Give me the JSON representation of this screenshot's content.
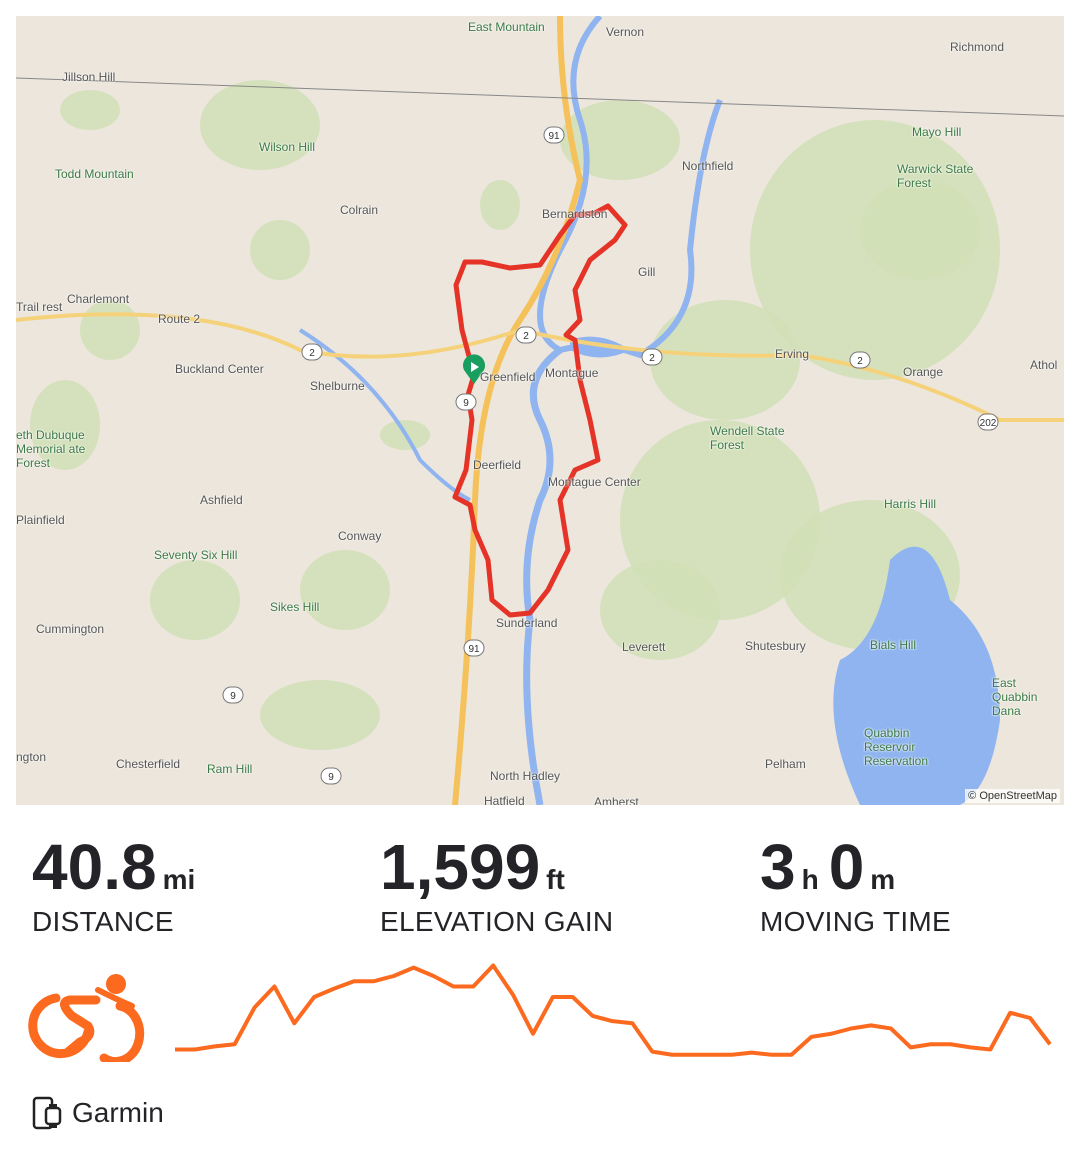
{
  "map": {
    "attribution": "© OpenStreetMap",
    "labels": [
      "East Mountain",
      "Vernon",
      "Richmond",
      "Jillson Hill",
      "Mayo Hill",
      "Wilson Hill",
      "Northfield",
      "Todd Mountain",
      "Warwick State Forest",
      "Colrain",
      "Bernardston",
      "Gill",
      "Charlemont",
      "Route 2",
      "Trail rest",
      "Buckland Center",
      "Greenfield",
      "Montague",
      "Erving",
      "Orange",
      "Athol",
      "Shelburne",
      "Wendell State Forest",
      "eth Dubuque Memorial ate Forest",
      "Deerfield",
      "Montague Center",
      "Harris Hill",
      "Ashfield",
      "Plainfield",
      "Conway",
      "Seventy Six Hill",
      "Sikes Hill",
      "Sunderland",
      "Leverett",
      "Shutesbury",
      "Bials Hill",
      "Cummington",
      "East Quabbin Dana",
      "Quabbin Reservoir Reservation",
      "ngton",
      "Chesterfield",
      "Ram Hill",
      "North Hadley",
      "Pelham",
      "Hatfield",
      "Amherst"
    ],
    "shields": [
      "91",
      "2",
      "2",
      "2",
      "9",
      "202",
      "91",
      "9",
      "9",
      "2"
    ],
    "route_color": "#e53327",
    "start_marker_color": "#1a9e5f"
  },
  "stats": [
    {
      "value": "40.8",
      "unit": "mi",
      "label": "DISTANCE"
    },
    {
      "value": "1,599",
      "unit": "ft",
      "label": "ELEVATION GAIN"
    },
    {
      "value": "3",
      "unit": "h",
      "value2": "0",
      "unit2": "m",
      "label": "MOVING TIME"
    }
  ],
  "activity": {
    "type_icon": "cycling-icon",
    "accent_color": "#fc6a1f"
  },
  "elevation_profile": [
    10,
    10,
    13,
    15,
    50,
    70,
    35,
    60,
    68,
    75,
    75,
    80,
    88,
    80,
    70,
    70,
    90,
    62,
    25,
    60,
    60,
    42,
    37,
    35,
    8,
    5,
    5,
    5,
    5,
    7,
    5,
    5,
    22,
    25,
    30,
    33,
    30,
    12,
    15,
    15,
    12,
    10,
    45,
    40,
    15
  ],
  "device": {
    "icon": "device-sync-icon",
    "name": "Garmin"
  }
}
